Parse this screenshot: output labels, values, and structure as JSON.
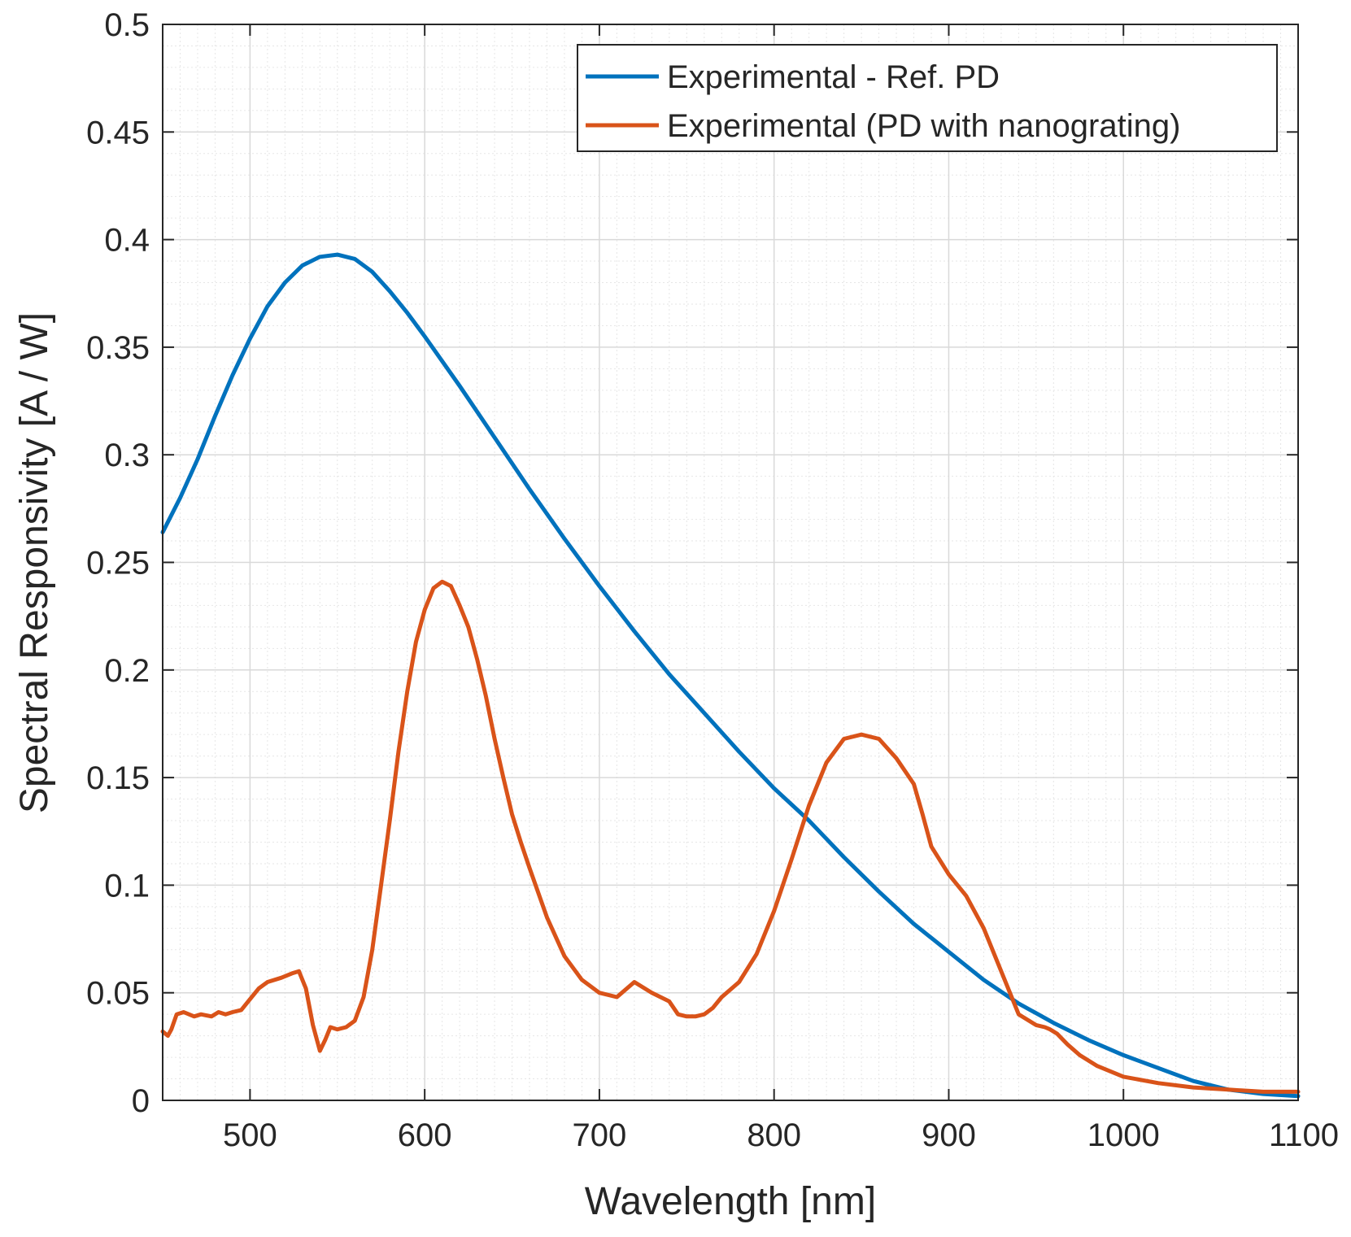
{
  "chart_data": {
    "type": "line",
    "xlabel": "Wavelength [nm]",
    "ylabel": "Spectral Responsivity [A / W]",
    "xlim": [
      450,
      1100
    ],
    "ylim": [
      0,
      0.5
    ],
    "grid": true,
    "minor_grid": true,
    "legend_position": "top-right",
    "x_ticks": [
      500,
      600,
      700,
      800,
      900,
      1000,
      1100
    ],
    "x_tick_labels": [
      "500",
      "600",
      "700",
      "800",
      "900",
      "1000",
      "1100"
    ],
    "y_ticks": [
      0,
      0.05,
      0.1,
      0.15,
      0.2,
      0.25,
      0.3,
      0.35,
      0.4,
      0.45,
      0.5
    ],
    "y_tick_labels": [
      "0",
      "0.05",
      "0.1",
      "0.15",
      "0.2",
      "0.25",
      "0.3",
      "0.35",
      "0.4",
      "0.45",
      "0.5"
    ],
    "series": [
      {
        "name": "Experimental - Ref. PD",
        "color": "#0072BD",
        "x": [
          450,
          460,
          470,
          480,
          490,
          500,
          510,
          520,
          530,
          540,
          550,
          560,
          570,
          580,
          590,
          600,
          620,
          640,
          660,
          680,
          700,
          720,
          740,
          760,
          780,
          800,
          820,
          840,
          860,
          880,
          900,
          920,
          940,
          960,
          980,
          1000,
          1020,
          1040,
          1060,
          1080,
          1100
        ],
        "y": [
          0.264,
          0.28,
          0.298,
          0.318,
          0.337,
          0.354,
          0.369,
          0.38,
          0.388,
          0.392,
          0.393,
          0.391,
          0.385,
          0.376,
          0.366,
          0.355,
          0.332,
          0.308,
          0.284,
          0.261,
          0.239,
          0.218,
          0.198,
          0.18,
          0.162,
          0.145,
          0.13,
          0.113,
          0.097,
          0.082,
          0.069,
          0.056,
          0.045,
          0.036,
          0.028,
          0.021,
          0.015,
          0.009,
          0.005,
          0.003,
          0.002
        ]
      },
      {
        "name": "Experimental (PD with nanograting)",
        "color": "#D95319",
        "x": [
          450,
          453,
          455,
          458,
          462,
          468,
          472,
          478,
          482,
          486,
          490,
          495,
          500,
          505,
          510,
          518,
          524,
          528,
          532,
          536,
          540,
          543,
          546,
          550,
          555,
          560,
          565,
          570,
          575,
          580,
          585,
          590,
          595,
          600,
          605,
          610,
          615,
          620,
          625,
          630,
          635,
          640,
          645,
          650,
          655,
          660,
          670,
          680,
          690,
          700,
          710,
          720,
          730,
          740,
          745,
          750,
          755,
          760,
          765,
          770,
          780,
          790,
          800,
          810,
          820,
          830,
          840,
          850,
          860,
          870,
          880,
          885,
          890,
          900,
          910,
          920,
          930,
          940,
          950,
          955,
          958,
          962,
          968,
          975,
          985,
          1000,
          1020,
          1040,
          1060,
          1080,
          1100
        ],
        "y": [
          0.032,
          0.03,
          0.033,
          0.04,
          0.041,
          0.039,
          0.04,
          0.039,
          0.041,
          0.04,
          0.041,
          0.042,
          0.047,
          0.052,
          0.055,
          0.057,
          0.059,
          0.06,
          0.052,
          0.035,
          0.023,
          0.028,
          0.034,
          0.033,
          0.034,
          0.037,
          0.048,
          0.07,
          0.1,
          0.13,
          0.162,
          0.19,
          0.213,
          0.228,
          0.238,
          0.241,
          0.239,
          0.23,
          0.22,
          0.205,
          0.188,
          0.168,
          0.15,
          0.133,
          0.12,
          0.108,
          0.085,
          0.067,
          0.056,
          0.05,
          0.048,
          0.055,
          0.05,
          0.046,
          0.04,
          0.039,
          0.039,
          0.04,
          0.043,
          0.048,
          0.055,
          0.068,
          0.088,
          0.112,
          0.137,
          0.157,
          0.168,
          0.17,
          0.168,
          0.159,
          0.147,
          0.133,
          0.118,
          0.105,
          0.095,
          0.08,
          0.06,
          0.04,
          0.035,
          0.034,
          0.033,
          0.031,
          0.026,
          0.021,
          0.016,
          0.011,
          0.008,
          0.006,
          0.005,
          0.004,
          0.004
        ]
      }
    ]
  }
}
